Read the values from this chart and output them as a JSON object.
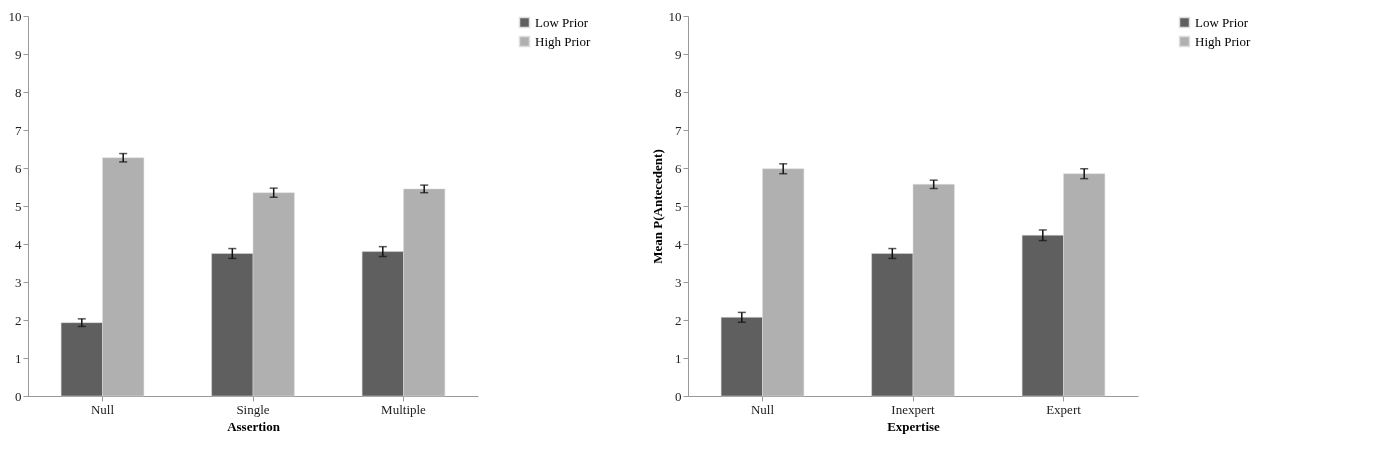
{
  "chart_data": [
    {
      "type": "bar",
      "xlabel": "Assertion",
      "categories": [
        "Null",
        "Single",
        "Multiple"
      ],
      "series": [
        {
          "name": "Low Prior",
          "color": "#5f5f5f",
          "values": [
            1.93,
            3.75,
            3.8
          ],
          "errors": [
            0.1,
            0.13,
            0.13
          ]
        },
        {
          "name": "High Prior",
          "color": "#b0b0b0",
          "values": [
            6.27,
            5.35,
            5.45
          ],
          "errors": [
            0.11,
            0.12,
            0.1
          ]
        }
      ],
      "ylim": [
        0,
        10
      ],
      "yticks": [
        0,
        1,
        2,
        3,
        4,
        5,
        6,
        7,
        8,
        9,
        10
      ],
      "grid": false,
      "legend": "right"
    },
    {
      "type": "bar",
      "xlabel": "Expertise",
      "ylabel": "Mean P(Antecedent)",
      "categories": [
        "Null",
        "Inexpert",
        "Expert"
      ],
      "series": [
        {
          "name": "Low Prior",
          "color": "#5f5f5f",
          "values": [
            2.07,
            3.75,
            4.23
          ],
          "errors": [
            0.13,
            0.13,
            0.14
          ]
        },
        {
          "name": "High Prior",
          "color": "#b0b0b0",
          "values": [
            5.98,
            5.57,
            5.85
          ],
          "errors": [
            0.13,
            0.11,
            0.13
          ]
        }
      ],
      "ylim": [
        0,
        10
      ],
      "yticks": [
        0,
        1,
        2,
        3,
        4,
        5,
        6,
        7,
        8,
        9,
        10
      ],
      "grid": false,
      "legend": "right"
    }
  ]
}
